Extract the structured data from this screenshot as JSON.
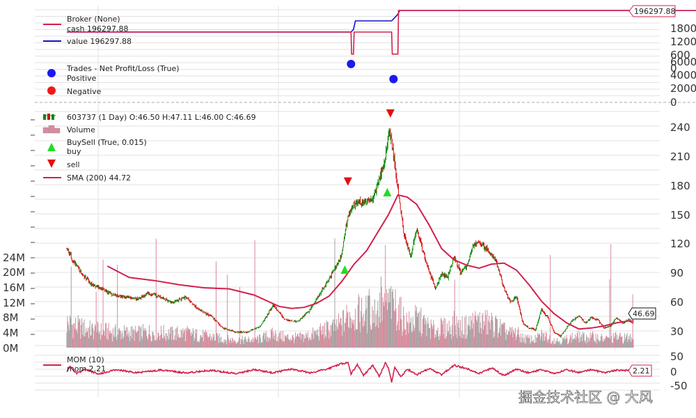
{
  "colors": {
    "line": "#d3204c",
    "value_line": "#1010cc",
    "up": "#0a8a0a",
    "down": "#d01010",
    "buy": "#22dd22",
    "sell": "#e31010",
    "positive": "#1a1aee",
    "negative": "#ee1a1a",
    "volume_up": "#d98a9c",
    "volume_down": "#a3a3a3",
    "grid": "#e2e2e2",
    "separator": "#aaaaaa"
  },
  "watermark": "掘金技术社区 @ 大风",
  "chart_data": [
    {
      "type": "line",
      "legend": [
        "Broker (None)",
        "cash 196297.88",
        "value 196297.88"
      ],
      "series": [
        {
          "name": "cash",
          "x": [
            0,
            455,
            456,
            459,
            460,
            520,
            521,
            530,
            531,
            1200
          ],
          "values": [
            100000,
            100000,
            1000,
            1000,
            100000,
            100000,
            1000,
            1000,
            196297.88,
            196297.88
          ]
        },
        {
          "name": "value",
          "x": [
            0,
            455,
            459,
            462,
            520,
            530,
            533,
            1200
          ],
          "values": [
            100000,
            100000,
            112000,
            150000,
            150000,
            180000,
            196297.88,
            196297.88
          ]
        }
      ],
      "right_ticks": [
        "1800",
        "1200",
        "600",
        "0"
      ],
      "last_value_label": "196297.88"
    },
    {
      "type": "scatter",
      "legend": [
        "Trades - Net Profit/Loss (True)",
        "Positive",
        "Negative"
      ],
      "series": [
        {
          "name": "Positive",
          "x": [
            455,
            523
          ],
          "values": [
            5500,
            3300
          ]
        },
        {
          "name": "Negative",
          "x": [],
          "values": []
        }
      ],
      "right_ticks": [
        "6000",
        "4000",
        "2000",
        "0"
      ],
      "ylim": [
        0,
        6500
      ]
    },
    {
      "type": "line",
      "legend": [
        "603737 (1 Day) O:46.50 H:47.11 L:46.00 C:46.69",
        "Volume",
        "BuySell (True, 0.015)",
        "buy",
        "sell",
        "SMA (200) 44.72"
      ],
      "right_ticks": [
        "240",
        "210",
        "180",
        "150",
        "120",
        "90",
        "60",
        "30"
      ],
      "left_ticks": [
        "24M",
        "20M",
        "16M",
        "12M",
        "8M",
        "4M",
        "0M"
      ],
      "ylim": [
        23,
        250
      ],
      "volume_ylim": [
        0,
        30000000
      ],
      "close": {
        "x": [
          0,
          10,
          25,
          40,
          55,
          75,
          95,
          115,
          130,
          150,
          170,
          190,
          210,
          230,
          250,
          270,
          290,
          310,
          330,
          350,
          370,
          390,
          410,
          425,
          440,
          450,
          460,
          475,
          490,
          500,
          508,
          515,
          520,
          530,
          540,
          550,
          560,
          570,
          580,
          590,
          600,
          610,
          620,
          630,
          640,
          650,
          660,
          670,
          680,
          690,
          700,
          710,
          720,
          730,
          740,
          750,
          760,
          770,
          780,
          790,
          800,
          810,
          820,
          830,
          840,
          850,
          860,
          870,
          880,
          890,
          900,
          907
        ],
        "values": [
          118,
          105,
          92,
          82,
          78,
          72,
          70,
          68,
          74,
          70,
          65,
          70,
          58,
          52,
          40,
          36,
          36,
          42,
          62,
          48,
          46,
          58,
          78,
          93,
          110,
          150,
          160,
          162,
          165,
          185,
          198,
          230,
          223,
          175,
          130,
          110,
          135,
          115,
          95,
          78,
          92,
          90,
          110,
          93,
          100,
          120,
          122,
          118,
          112,
          100,
          78,
          65,
          70,
          45,
          40,
          38,
          58,
          50,
          36,
          32,
          40,
          48,
          52,
          45,
          50,
          48,
          40,
          42,
          50,
          45,
          48,
          46.69
        ]
      },
      "sma": {
        "x": [
          65,
          100,
          140,
          180,
          220,
          260,
          300,
          340,
          360,
          380,
          400,
          420,
          440,
          460,
          480,
          500,
          515,
          530,
          545,
          560,
          580,
          600,
          620,
          640,
          660,
          680,
          700,
          720,
          740,
          760,
          780,
          800,
          820,
          840,
          860,
          880,
          900,
          907
        ],
        "values": [
          100,
          89,
          86,
          82,
          79,
          78,
          72,
          61,
          59,
          60,
          64,
          71,
          85,
          102,
          115,
          135,
          150,
          169,
          167,
          160,
          140,
          117,
          106,
          101,
          98,
          102,
          103,
          96,
          82,
          66,
          54,
          45,
          39,
          40,
          42,
          45,
          47,
          44.72
        ]
      },
      "buy": {
        "x": [
          445,
          513
        ],
        "values": [
          96,
          171
        ]
      },
      "sell": {
        "x": [
          450,
          518
        ],
        "values": [
          182,
          248
        ]
      },
      "last_price_label": "46.69"
    },
    {
      "type": "line",
      "legend": [
        "MOM (10)",
        "mom 2.21"
      ],
      "right_ticks": [
        "50",
        "0",
        "-50"
      ],
      "ylim": [
        -55,
        55
      ],
      "series": [
        {
          "name": "mom",
          "x": [
            0,
            5,
            15,
            30,
            50,
            80,
            110,
            150,
            190,
            230,
            270,
            300,
            330,
            360,
            390,
            420,
            440,
            450,
            455,
            465,
            475,
            490,
            500,
            510,
            515,
            520,
            525,
            535,
            545,
            560,
            580,
            600,
            620,
            640,
            660,
            680,
            700,
            720,
            740,
            760,
            780,
            800,
            820,
            840,
            860,
            880,
            900,
            907
          ],
          "values": [
            0,
            18,
            -8,
            8,
            -10,
            6,
            -5,
            5,
            -6,
            4,
            -8,
            6,
            -5,
            8,
            -6,
            10,
            28,
            30,
            -10,
            25,
            -15,
            22,
            -18,
            30,
            10,
            -40,
            15,
            -20,
            8,
            -12,
            10,
            -12,
            22,
            10,
            -8,
            12,
            -15,
            8,
            -6,
            6,
            -8,
            5,
            -4,
            6,
            -5,
            4,
            3,
            2.21
          ]
        }
      ],
      "last_value_label": "2.21"
    }
  ]
}
